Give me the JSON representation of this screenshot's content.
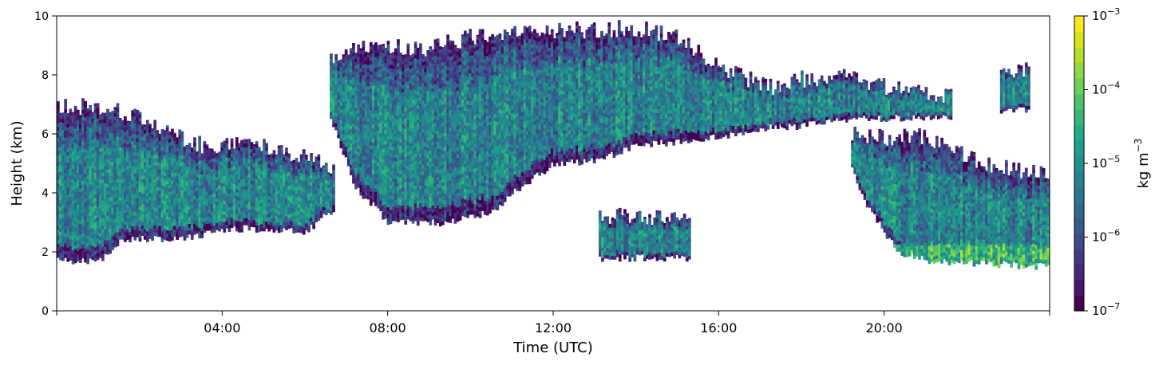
{
  "chart_data": {
    "type": "heatmap",
    "title": "",
    "xlabel": "Time (UTC)",
    "ylabel": "Height (km)",
    "xlim_hours": [
      0,
      24
    ],
    "ylim": [
      0,
      10
    ],
    "x_ticks": [
      {
        "hour": 0,
        "label": ""
      },
      {
        "hour": 4,
        "label": "04:00"
      },
      {
        "hour": 8,
        "label": "08:00"
      },
      {
        "hour": 12,
        "label": "12:00"
      },
      {
        "hour": 16,
        "label": "16:00"
      },
      {
        "hour": 20,
        "label": "20:00"
      },
      {
        "hour": 24,
        "label": ""
      }
    ],
    "y_ticks": [
      0,
      2,
      4,
      6,
      8,
      10
    ],
    "colorbar": {
      "label_base": "kg m",
      "label_exp": "−3",
      "scale": "log",
      "colormap": "viridis",
      "ticks": [
        {
          "base": "10",
          "exp": "−7"
        },
        {
          "base": "10",
          "exp": "−6"
        },
        {
          "base": "10",
          "exp": "−5"
        },
        {
          "base": "10",
          "exp": "−4"
        },
        {
          "base": "10",
          "exp": "−3"
        }
      ],
      "colors": [
        "#440154",
        "#481668",
        "#482878",
        "#443983",
        "#3e4a89",
        "#375a8c",
        "#31688e",
        "#2b758e",
        "#26828e",
        "#21918c",
        "#1f9e89",
        "#25ab82",
        "#35b779",
        "#4ec36b",
        "#6ece58",
        "#90d743",
        "#b5de2b",
        "#dae319",
        "#fde725"
      ]
    },
    "regions": [
      {
        "name": "low-cloud-morning",
        "time_hours": [
          0,
          6.7
        ],
        "base_km": [
          [
            0,
            1.7
          ],
          [
            1.0,
            1.7
          ],
          [
            1.5,
            2.4
          ],
          [
            3,
            2.5
          ],
          [
            4.5,
            2.8
          ],
          [
            6,
            2.7
          ],
          [
            6.7,
            3.5
          ]
        ],
        "top_km": [
          [
            0,
            7.0
          ],
          [
            1.5,
            6.8
          ],
          [
            2.5,
            6.2
          ],
          [
            3.5,
            5.6
          ],
          [
            5,
            5.6
          ],
          [
            6,
            5.2
          ],
          [
            6.7,
            4.8
          ]
        ]
      },
      {
        "name": "deep-cloud-midday",
        "time_hours": [
          6.6,
          17.5
        ],
        "base_km": [
          [
            6.6,
            6.5
          ],
          [
            7.2,
            4.2
          ],
          [
            8,
            3.0
          ],
          [
            9.5,
            3.0
          ],
          [
            10.5,
            3.4
          ],
          [
            11,
            4.0
          ],
          [
            12,
            5.0
          ],
          [
            13,
            5.1
          ],
          [
            14,
            5.6
          ],
          [
            16,
            5.9
          ],
          [
            17.5,
            6.3
          ]
        ],
        "top_km": [
          [
            6.6,
            8.5
          ],
          [
            7.5,
            9.0
          ],
          [
            9,
            8.9
          ],
          [
            10,
            9.3
          ],
          [
            12,
            9.5
          ],
          [
            14,
            9.6
          ],
          [
            15,
            9.3
          ],
          [
            16,
            8.2
          ],
          [
            17.5,
            7.5
          ]
        ]
      },
      {
        "name": "upper-cloud-evening",
        "time_hours": [
          17.5,
          21.6
        ],
        "base_km": [
          [
            17.5,
            6.2
          ],
          [
            19,
            6.5
          ],
          [
            21.6,
            6.6
          ]
        ],
        "top_km": [
          [
            17.5,
            7.8
          ],
          [
            19,
            8.0
          ],
          [
            20,
            7.6
          ],
          [
            21.6,
            7.3
          ]
        ]
      },
      {
        "name": "lower-cloud-evening",
        "time_hours": [
          19.2,
          24
        ],
        "base_km": [
          [
            19.2,
            4.8
          ],
          [
            19.6,
            3.5
          ],
          [
            20.3,
            2.0
          ],
          [
            21,
            1.7
          ],
          [
            24,
            1.5
          ]
        ],
        "top_km": [
          [
            19.2,
            6.0
          ],
          [
            20,
            5.9
          ],
          [
            21,
            5.9
          ],
          [
            22,
            5.2
          ],
          [
            23,
            4.8
          ],
          [
            24,
            4.7
          ]
        ]
      },
      {
        "name": "mid-cloud-afternoon",
        "time_hours": [
          13.1,
          15.3
        ],
        "base_km": [
          [
            13.1,
            1.8
          ],
          [
            15.3,
            1.8
          ]
        ],
        "top_km": [
          [
            13.1,
            3.2
          ],
          [
            15.3,
            3.2
          ]
        ]
      },
      {
        "name": "cloud-patch-late",
        "time_hours": [
          22.8,
          23.5
        ],
        "base_km": [
          [
            22.8,
            6.8
          ],
          [
            23.5,
            6.8
          ]
        ],
        "top_km": [
          [
            22.8,
            8.2
          ],
          [
            23.5,
            8.2
          ]
        ]
      }
    ]
  }
}
